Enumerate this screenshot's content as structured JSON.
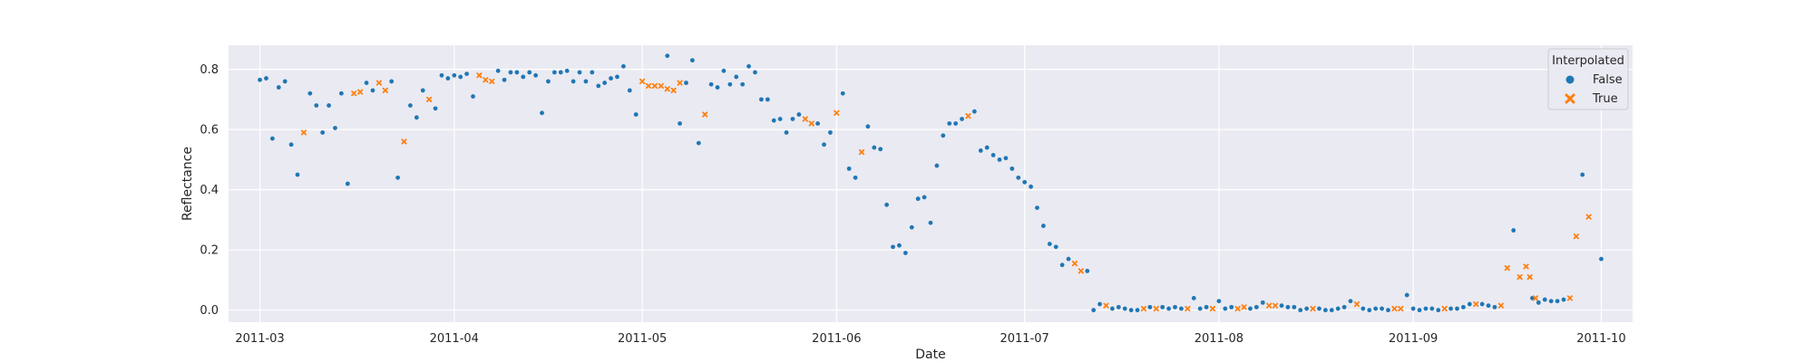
{
  "chart_data": {
    "type": "scatter",
    "title": "",
    "xlabel": "Date",
    "ylabel": "Reflectance",
    "x_start_day": -5,
    "x_end_day": 219,
    "ylim": [
      -0.04,
      0.88
    ],
    "grid": true,
    "x_ticks": [
      {
        "day": 0,
        "label": "2011-03"
      },
      {
        "day": 31,
        "label": "2011-04"
      },
      {
        "day": 61,
        "label": "2011-05"
      },
      {
        "day": 92,
        "label": "2011-06"
      },
      {
        "day": 122,
        "label": "2011-07"
      },
      {
        "day": 153,
        "label": "2011-08"
      },
      {
        "day": 184,
        "label": "2011-09"
      },
      {
        "day": 214,
        "label": "2011-10"
      }
    ],
    "y_ticks": [
      {
        "value": 0.0,
        "label": "0.0"
      },
      {
        "value": 0.2,
        "label": "0.2"
      },
      {
        "value": 0.4,
        "label": "0.4"
      },
      {
        "value": 0.6,
        "label": "0.6"
      },
      {
        "value": 0.8,
        "label": "0.8"
      }
    ],
    "legend": {
      "title": "Interpolated",
      "position": "top-right",
      "entries": [
        {
          "label": "False",
          "marker": "circle",
          "color": "#1f77b4"
        },
        {
          "label": "True",
          "marker": "x",
          "color": "#ff7f0e"
        }
      ]
    },
    "series": [
      {
        "name": "False",
        "color": "#1f77b4",
        "marker": "circle",
        "points": [
          [
            0,
            0.765
          ],
          [
            1,
            0.77
          ],
          [
            2,
            0.57
          ],
          [
            3,
            0.74
          ],
          [
            4,
            0.76
          ],
          [
            5,
            0.55
          ],
          [
            6,
            0.45
          ],
          [
            8,
            0.72
          ],
          [
            9,
            0.68
          ],
          [
            10,
            0.59
          ],
          [
            11,
            0.68
          ],
          [
            12,
            0.605
          ],
          [
            13,
            0.72
          ],
          [
            14,
            0.42
          ],
          [
            17,
            0.755
          ],
          [
            18,
            0.73
          ],
          [
            21,
            0.76
          ],
          [
            22,
            0.44
          ],
          [
            24,
            0.68
          ],
          [
            25,
            0.64
          ],
          [
            26,
            0.73
          ],
          [
            28,
            0.67
          ],
          [
            29,
            0.78
          ],
          [
            30,
            0.77
          ],
          [
            31,
            0.78
          ],
          [
            32,
            0.775
          ],
          [
            33,
            0.785
          ],
          [
            34,
            0.71
          ],
          [
            38,
            0.795
          ],
          [
            39,
            0.765
          ],
          [
            40,
            0.79
          ],
          [
            41,
            0.79
          ],
          [
            42,
            0.775
          ],
          [
            43,
            0.79
          ],
          [
            44,
            0.78
          ],
          [
            45,
            0.655
          ],
          [
            46,
            0.76
          ],
          [
            47,
            0.79
          ],
          [
            48,
            0.79
          ],
          [
            49,
            0.795
          ],
          [
            50,
            0.76
          ],
          [
            51,
            0.79
          ],
          [
            52,
            0.76
          ],
          [
            53,
            0.79
          ],
          [
            54,
            0.745
          ],
          [
            55,
            0.755
          ],
          [
            56,
            0.77
          ],
          [
            57,
            0.775
          ],
          [
            58,
            0.81
          ],
          [
            59,
            0.73
          ],
          [
            60,
            0.65
          ],
          [
            65,
            0.845
          ],
          [
            67,
            0.62
          ],
          [
            68,
            0.755
          ],
          [
            69,
            0.83
          ],
          [
            70,
            0.555
          ],
          [
            72,
            0.75
          ],
          [
            73,
            0.74
          ],
          [
            74,
            0.795
          ],
          [
            75,
            0.75
          ],
          [
            76,
            0.775
          ],
          [
            77,
            0.75
          ],
          [
            78,
            0.81
          ],
          [
            79,
            0.79
          ],
          [
            80,
            0.7
          ],
          [
            81,
            0.7
          ],
          [
            82,
            0.63
          ],
          [
            83,
            0.635
          ],
          [
            84,
            0.59
          ],
          [
            85,
            0.635
          ],
          [
            86,
            0.65
          ],
          [
            89,
            0.62
          ],
          [
            90,
            0.55
          ],
          [
            91,
            0.59
          ],
          [
            93,
            0.72
          ],
          [
            94,
            0.47
          ],
          [
            95,
            0.44
          ],
          [
            97,
            0.61
          ],
          [
            98,
            0.54
          ],
          [
            99,
            0.535
          ],
          [
            100,
            0.35
          ],
          [
            101,
            0.21
          ],
          [
            102,
            0.215
          ],
          [
            103,
            0.19
          ],
          [
            104,
            0.275
          ],
          [
            105,
            0.37
          ],
          [
            106,
            0.375
          ],
          [
            107,
            0.29
          ],
          [
            108,
            0.48
          ],
          [
            109,
            0.58
          ],
          [
            110,
            0.62
          ],
          [
            111,
            0.62
          ],
          [
            112,
            0.635
          ],
          [
            114,
            0.66
          ],
          [
            115,
            0.53
          ],
          [
            116,
            0.54
          ],
          [
            117,
            0.515
          ],
          [
            118,
            0.5
          ],
          [
            119,
            0.505
          ],
          [
            120,
            0.47
          ],
          [
            121,
            0.44
          ],
          [
            122,
            0.425
          ],
          [
            123,
            0.41
          ],
          [
            124,
            0.34
          ],
          [
            125,
            0.28
          ],
          [
            126,
            0.22
          ],
          [
            127,
            0.21
          ],
          [
            128,
            0.15
          ],
          [
            129,
            0.17
          ],
          [
            132,
            0.13
          ],
          [
            133,
            0.0
          ],
          [
            134,
            0.02
          ],
          [
            136,
            0.005
          ],
          [
            137,
            0.01
          ],
          [
            138,
            0.005
          ],
          [
            139,
            0.0
          ],
          [
            140,
            0.0
          ],
          [
            142,
            0.01
          ],
          [
            144,
            0.01
          ],
          [
            145,
            0.005
          ],
          [
            146,
            0.01
          ],
          [
            147,
            0.005
          ],
          [
            149,
            0.04
          ],
          [
            150,
            0.005
          ],
          [
            151,
            0.01
          ],
          [
            153,
            0.03
          ],
          [
            154,
            0.005
          ],
          [
            155,
            0.01
          ],
          [
            158,
            0.005
          ],
          [
            159,
            0.01
          ],
          [
            160,
            0.025
          ],
          [
            163,
            0.015
          ],
          [
            164,
            0.01
          ],
          [
            165,
            0.01
          ],
          [
            166,
            0.0
          ],
          [
            167,
            0.005
          ],
          [
            169,
            0.005
          ],
          [
            170,
            0.0
          ],
          [
            171,
            0.0
          ],
          [
            172,
            0.005
          ],
          [
            173,
            0.01
          ],
          [
            174,
            0.03
          ],
          [
            176,
            0.005
          ],
          [
            177,
            0.0
          ],
          [
            178,
            0.005
          ],
          [
            179,
            0.005
          ],
          [
            180,
            0.0
          ],
          [
            183,
            0.05
          ],
          [
            184,
            0.005
          ],
          [
            185,
            0.0
          ],
          [
            186,
            0.005
          ],
          [
            187,
            0.005
          ],
          [
            188,
            0.0
          ],
          [
            190,
            0.005
          ],
          [
            191,
            0.005
          ],
          [
            192,
            0.01
          ],
          [
            193,
            0.02
          ],
          [
            195,
            0.02
          ],
          [
            196,
            0.015
          ],
          [
            197,
            0.01
          ],
          [
            200,
            0.265
          ],
          [
            203,
            0.04
          ],
          [
            204,
            0.025
          ],
          [
            205,
            0.035
          ],
          [
            206,
            0.03
          ],
          [
            207,
            0.03
          ],
          [
            208,
            0.035
          ],
          [
            211,
            0.45
          ],
          [
            214,
            0.17
          ]
        ]
      },
      {
        "name": "True",
        "color": "#ff7f0e",
        "marker": "x",
        "points": [
          [
            7,
            0.59
          ],
          [
            15,
            0.72
          ],
          [
            16,
            0.725
          ],
          [
            19,
            0.755
          ],
          [
            20,
            0.73
          ],
          [
            23,
            0.56
          ],
          [
            27,
            0.7
          ],
          [
            35,
            0.78
          ],
          [
            36,
            0.765
          ],
          [
            37,
            0.76
          ],
          [
            61,
            0.76
          ],
          [
            62,
            0.745
          ],
          [
            63,
            0.745
          ],
          [
            64,
            0.745
          ],
          [
            65,
            0.735
          ],
          [
            66,
            0.73
          ],
          [
            67,
            0.755
          ],
          [
            71,
            0.65
          ],
          [
            87,
            0.635
          ],
          [
            88,
            0.62
          ],
          [
            92,
            0.655
          ],
          [
            96,
            0.525
          ],
          [
            113,
            0.645
          ],
          [
            130,
            0.155
          ],
          [
            131,
            0.13
          ],
          [
            135,
            0.015
          ],
          [
            141,
            0.005
          ],
          [
            143,
            0.005
          ],
          [
            148,
            0.005
          ],
          [
            152,
            0.005
          ],
          [
            156,
            0.005
          ],
          [
            157,
            0.01
          ],
          [
            161,
            0.015
          ],
          [
            162,
            0.015
          ],
          [
            168,
            0.005
          ],
          [
            175,
            0.02
          ],
          [
            181,
            0.005
          ],
          [
            182,
            0.005
          ],
          [
            189,
            0.005
          ],
          [
            194,
            0.02
          ],
          [
            198,
            0.015
          ],
          [
            199,
            0.14
          ],
          [
            201,
            0.11
          ],
          [
            202,
            0.145
          ],
          [
            202.6,
            0.11
          ],
          [
            203.5,
            0.04
          ],
          [
            209,
            0.04
          ],
          [
            210,
            0.245
          ],
          [
            212,
            0.31
          ]
        ]
      }
    ]
  }
}
